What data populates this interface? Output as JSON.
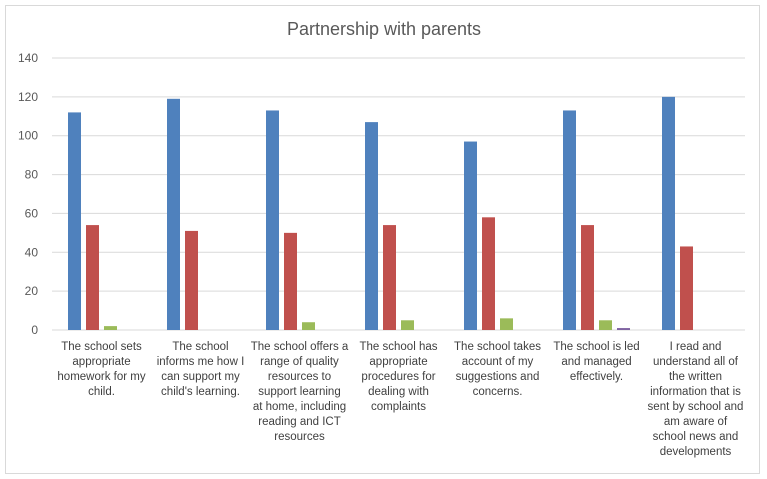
{
  "chart_data": {
    "type": "bar",
    "title": "Partnership with parents",
    "xlabel": "",
    "ylabel": "",
    "ylim": [
      0,
      140
    ],
    "yticks": [
      0,
      20,
      40,
      60,
      80,
      100,
      120,
      140
    ],
    "grid": true,
    "legend": "none",
    "categories": [
      "The school sets appropriate homework for my child.",
      "The school informs me how I can support my child's learning.",
      "The school offers a range of quality resources to support learning at home, including reading and ICT resources",
      "The school has appropriate procedures for dealing with complaints",
      "The school takes account of my suggestions and concerns.",
      "The school is led and managed effectively.",
      "I read and understand all of the written information that is sent by school and am aware of school news and developments"
    ],
    "category_lines": [
      [
        "The school sets",
        "appropriate",
        "homework for my",
        "child."
      ],
      [
        "The school",
        "informs me how I",
        "can support my",
        "child's learning."
      ],
      [
        "The school offers a",
        "range of quality",
        "resources to",
        "support learning",
        "at home, including",
        "reading and ICT",
        "resources"
      ],
      [
        "The school has",
        "appropriate",
        "procedures for",
        "dealing with",
        "complaints"
      ],
      [
        "The school takes",
        "account of my",
        "suggestions and",
        "concerns."
      ],
      [
        "The school is led",
        "and managed",
        "effectively."
      ],
      [
        "I read and",
        "understand all of",
        "the written",
        "information that is",
        "sent by school and",
        "am aware of",
        "school news and",
        "developments"
      ]
    ],
    "series": [
      {
        "color": "#4f81bd",
        "values": [
          112,
          119,
          113,
          107,
          97,
          113,
          120
        ]
      },
      {
        "color": "#c0504d",
        "values": [
          54,
          51,
          50,
          54,
          58,
          54,
          43
        ]
      },
      {
        "color": "#9bbb59",
        "values": [
          2,
          0,
          4,
          5,
          6,
          5,
          0
        ]
      },
      {
        "color": "#8064a2",
        "values": [
          0,
          0,
          0,
          0,
          0,
          1,
          0
        ]
      }
    ],
    "colors": {
      "grid": "#d9d9d9",
      "axis": "#d9d9d9"
    }
  }
}
